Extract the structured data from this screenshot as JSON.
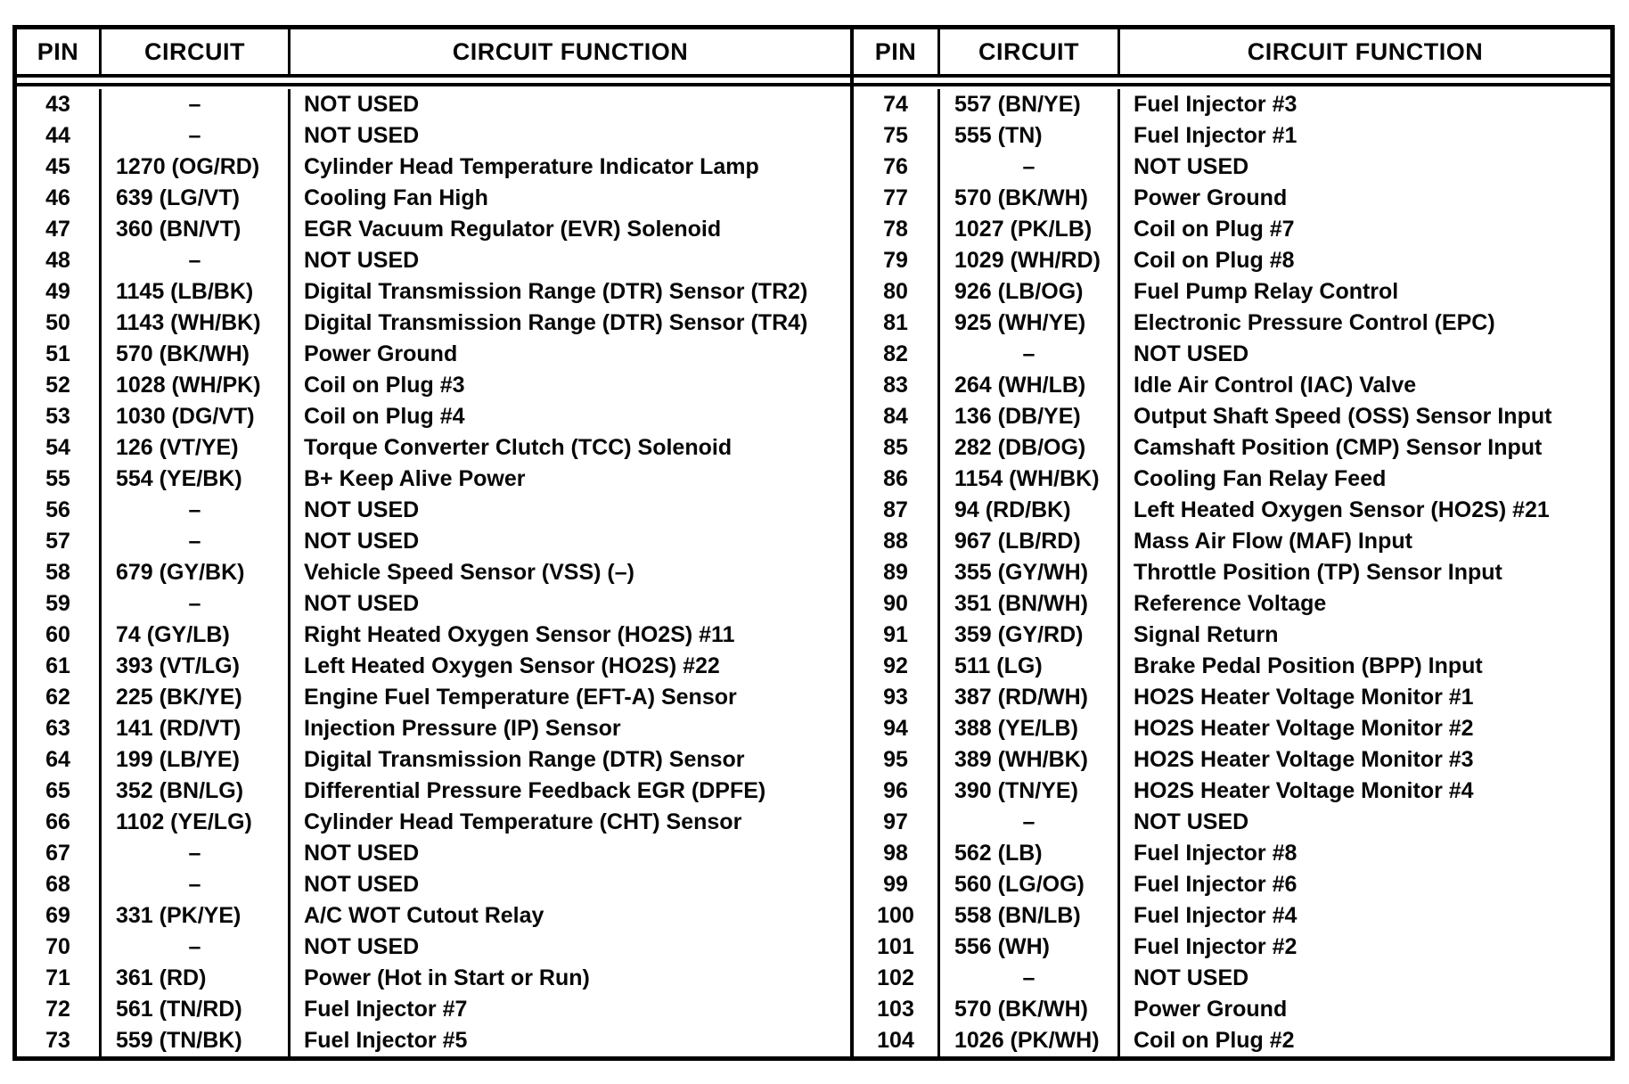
{
  "tables": [
    {
      "headers": [
        "PIN",
        "CIRCUIT",
        "CIRCUIT FUNCTION"
      ],
      "rows": [
        [
          "43",
          "–",
          "NOT USED"
        ],
        [
          "44",
          "–",
          "NOT USED"
        ],
        [
          "45",
          "1270 (OG/RD)",
          "Cylinder Head Temperature Indicator Lamp"
        ],
        [
          "46",
          "639 (LG/VT)",
          "Cooling Fan High"
        ],
        [
          "47",
          "360 (BN/VT)",
          "EGR Vacuum Regulator (EVR) Solenoid"
        ],
        [
          "48",
          "–",
          "NOT USED"
        ],
        [
          "49",
          "1145 (LB/BK)",
          "Digital Transmission Range (DTR) Sensor (TR2)"
        ],
        [
          "50",
          "1143 (WH/BK)",
          "Digital Transmission Range (DTR) Sensor (TR4)"
        ],
        [
          "51",
          "570 (BK/WH)",
          "Power Ground"
        ],
        [
          "52",
          "1028 (WH/PK)",
          "Coil on Plug #3"
        ],
        [
          "53",
          "1030 (DG/VT)",
          "Coil on Plug #4"
        ],
        [
          "54",
          "126 (VT/YE)",
          "Torque Converter Clutch (TCC) Solenoid"
        ],
        [
          "55",
          "554 (YE/BK)",
          "B+ Keep Alive Power"
        ],
        [
          "56",
          "–",
          "NOT USED"
        ],
        [
          "57",
          "–",
          "NOT USED"
        ],
        [
          "58",
          "679 (GY/BK)",
          "Vehicle Speed Sensor (VSS) (–)"
        ],
        [
          "59",
          "–",
          "NOT USED"
        ],
        [
          "60",
          "74 (GY/LB)",
          "Right Heated Oxygen Sensor (HO2S) #11"
        ],
        [
          "61",
          "393 (VT/LG)",
          "Left Heated Oxygen Sensor (HO2S) #22"
        ],
        [
          "62",
          "225 (BK/YE)",
          "Engine Fuel Temperature (EFT-A) Sensor"
        ],
        [
          "63",
          "141 (RD/VT)",
          "Injection Pressure (IP) Sensor"
        ],
        [
          "64",
          "199 (LB/YE)",
          "Digital Transmission Range (DTR) Sensor"
        ],
        [
          "65",
          "352 (BN/LG)",
          "Differential Pressure Feedback EGR (DPFE)"
        ],
        [
          "66",
          "1102 (YE/LG)",
          "Cylinder Head Temperature (CHT) Sensor"
        ],
        [
          "67",
          "–",
          "NOT USED"
        ],
        [
          "68",
          "–",
          "NOT USED"
        ],
        [
          "69",
          "331 (PK/YE)",
          "A/C WOT Cutout Relay"
        ],
        [
          "70",
          "–",
          "NOT USED"
        ],
        [
          "71",
          "361 (RD)",
          "Power (Hot in Start or Run)"
        ],
        [
          "72",
          "561 (TN/RD)",
          "Fuel Injector #7"
        ],
        [
          "73",
          "559 (TN/BK)",
          "Fuel Injector #5"
        ]
      ]
    },
    {
      "headers": [
        "PIN",
        "CIRCUIT",
        "CIRCUIT FUNCTION"
      ],
      "rows": [
        [
          "74",
          "557 (BN/YE)",
          "Fuel Injector #3"
        ],
        [
          "75",
          "555 (TN)",
          "Fuel Injector #1"
        ],
        [
          "76",
          "–",
          "NOT USED"
        ],
        [
          "77",
          "570 (BK/WH)",
          "Power Ground"
        ],
        [
          "78",
          "1027 (PK/LB)",
          "Coil on Plug #7"
        ],
        [
          "79",
          "1029 (WH/RD)",
          "Coil on Plug #8"
        ],
        [
          "80",
          "926 (LB/OG)",
          "Fuel Pump Relay Control"
        ],
        [
          "81",
          "925 (WH/YE)",
          "Electronic Pressure Control (EPC)"
        ],
        [
          "82",
          "–",
          "NOT USED"
        ],
        [
          "83",
          "264 (WH/LB)",
          "Idle Air Control (IAC) Valve"
        ],
        [
          "84",
          "136 (DB/YE)",
          "Output Shaft Speed (OSS) Sensor Input"
        ],
        [
          "85",
          "282 (DB/OG)",
          "Camshaft Position (CMP) Sensor Input"
        ],
        [
          "86",
          "1154 (WH/BK)",
          "Cooling Fan Relay Feed"
        ],
        [
          "87",
          "94 (RD/BK)",
          "Left Heated Oxygen Sensor (HO2S) #21"
        ],
        [
          "88",
          "967 (LB/RD)",
          "Mass Air Flow (MAF) Input"
        ],
        [
          "89",
          "355 (GY/WH)",
          "Throttle Position (TP) Sensor Input"
        ],
        [
          "90",
          "351 (BN/WH)",
          "Reference Voltage"
        ],
        [
          "91",
          "359 (GY/RD)",
          "Signal Return"
        ],
        [
          "92",
          "511 (LG)",
          "Brake Pedal Position (BPP) Input"
        ],
        [
          "93",
          "387 (RD/WH)",
          "HO2S Heater Voltage Monitor #1"
        ],
        [
          "94",
          "388 (YE/LB)",
          "HO2S Heater Voltage Monitor #2"
        ],
        [
          "95",
          "389 (WH/BK)",
          "HO2S Heater Voltage Monitor #3"
        ],
        [
          "96",
          "390 (TN/YE)",
          "HO2S Heater Voltage Monitor #4"
        ],
        [
          "97",
          "–",
          "NOT USED"
        ],
        [
          "98",
          "562 (LB)",
          "Fuel Injector #8"
        ],
        [
          "99",
          "560 (LG/OG)",
          "Fuel Injector #6"
        ],
        [
          "100",
          "558 (BN/LB)",
          "Fuel Injector #4"
        ],
        [
          "101",
          "556 (WH)",
          "Fuel Injector #2"
        ],
        [
          "102",
          "–",
          "NOT USED"
        ],
        [
          "103",
          "570 (BK/WH)",
          "Power Ground"
        ],
        [
          "104",
          "1026 (PK/WH)",
          "Coil on Plug #2"
        ]
      ]
    }
  ]
}
